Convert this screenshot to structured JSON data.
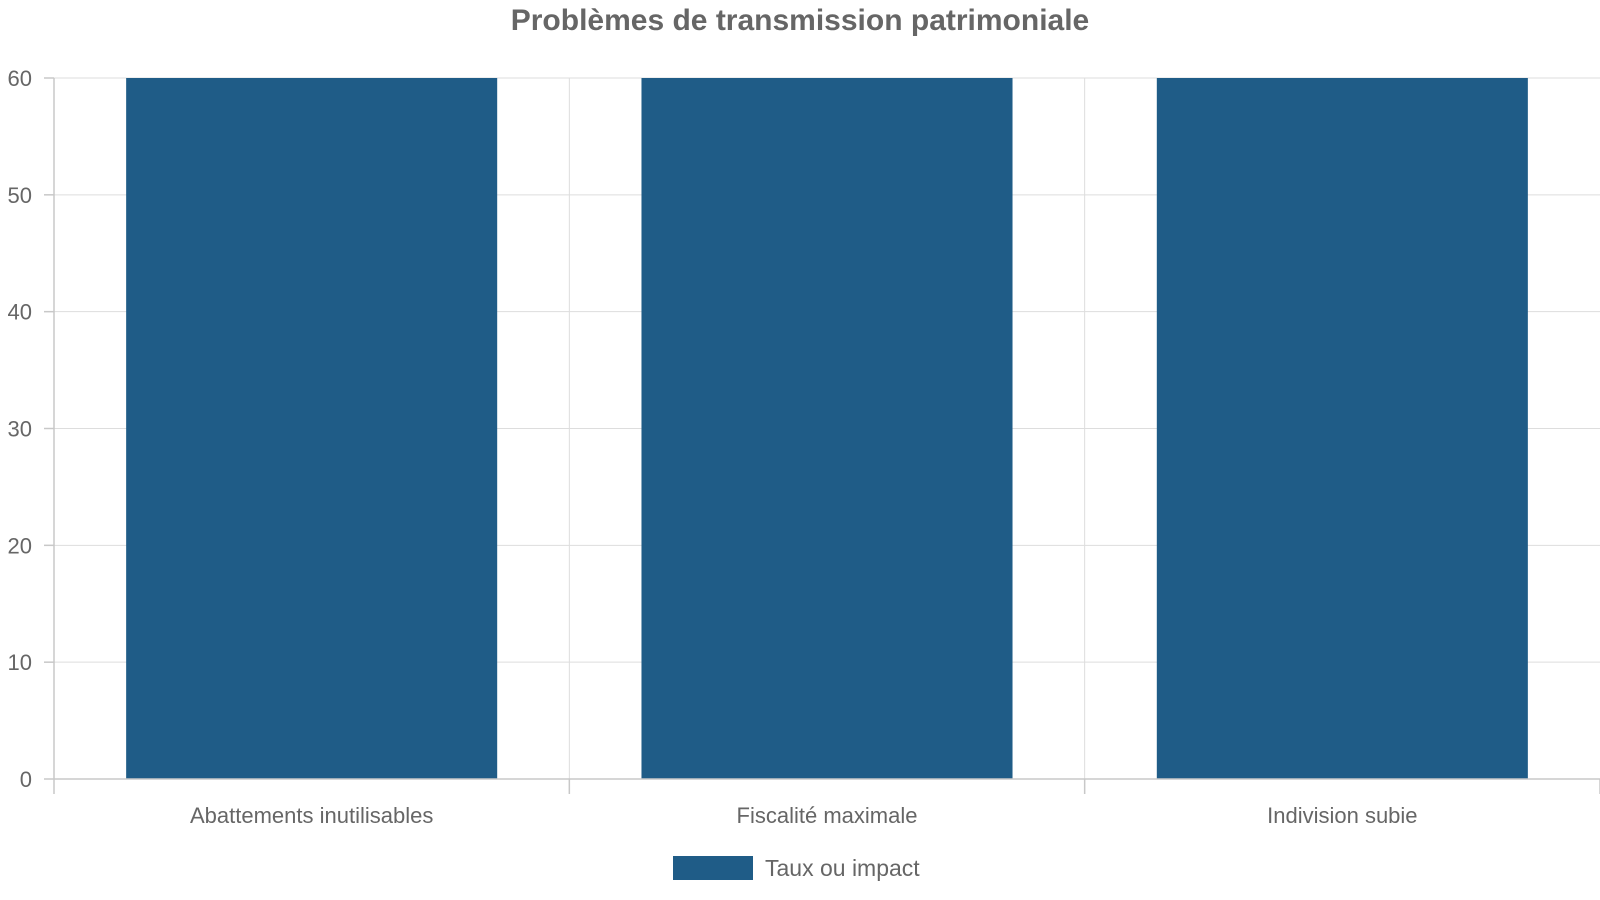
{
  "chart_data": {
    "type": "bar",
    "title": "Problèmes de transmission patrimoniale",
    "xlabel": "",
    "ylabel": "",
    "categories": [
      "Abattements inutilisables",
      "Fiscalité maximale",
      "Indivision subie"
    ],
    "series": [
      {
        "name": "Taux ou impact",
        "values": [
          60,
          60,
          60
        ],
        "color": "#1f5c87"
      }
    ],
    "ylim": [
      0,
      60
    ],
    "yticks": [
      0,
      10,
      20,
      30,
      40,
      50,
      60
    ],
    "grid": true,
    "legend_position": "bottom"
  }
}
